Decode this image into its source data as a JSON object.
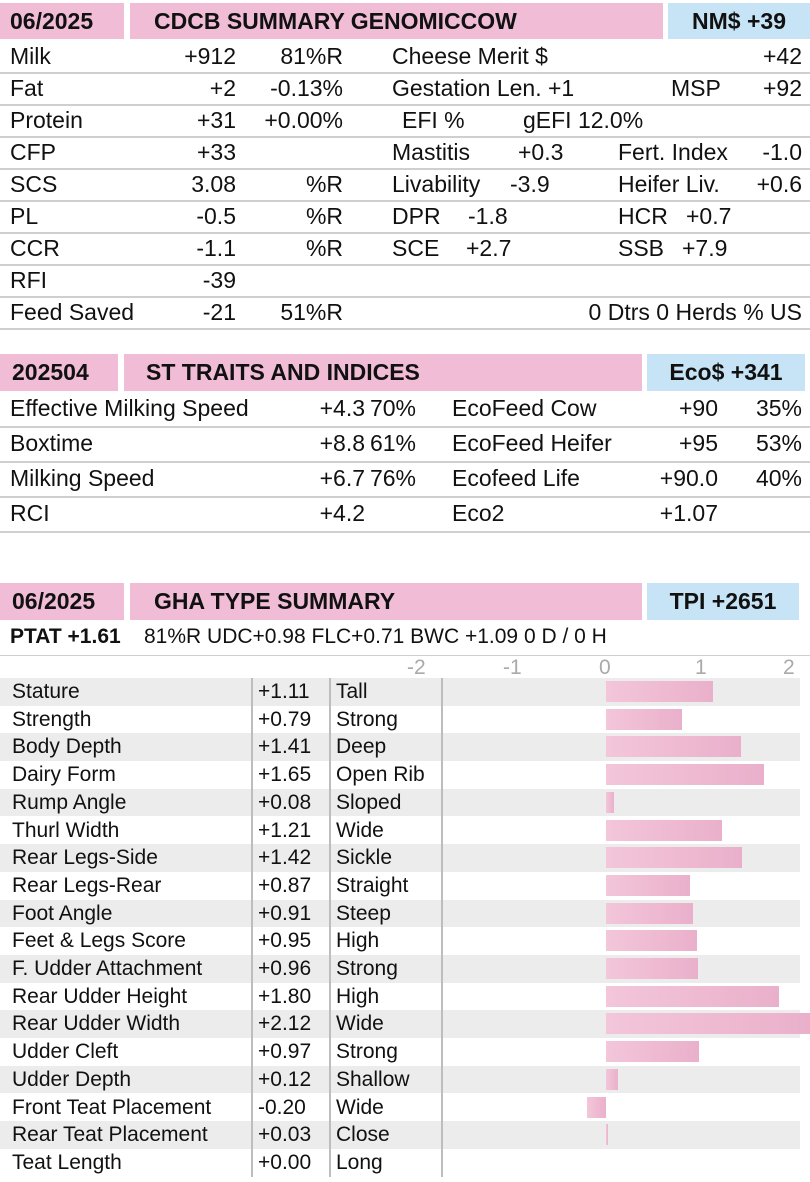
{
  "section1": {
    "date": "06/2025",
    "title": "CDCB SUMMARY GENOMICCOW",
    "score": "NM$ +39",
    "left_rows": [
      {
        "label": "Milk",
        "value": "+912",
        "extra": "81%R"
      },
      {
        "label": "Fat",
        "value": "+2",
        "extra": "-0.13%"
      },
      {
        "label": "Protein",
        "value": "+31",
        "extra": "+0.00%"
      },
      {
        "label": "CFP",
        "value": "+33",
        "extra": ""
      },
      {
        "label": "SCS",
        "value": "3.08",
        "extra": "%R"
      },
      {
        "label": "PL",
        "value": "-0.5",
        "extra": "%R"
      },
      {
        "label": "CCR",
        "value": "-1.1",
        "extra": "%R"
      },
      {
        "label": "RFI",
        "value": "-39",
        "extra": ""
      },
      {
        "label": "Feed Saved",
        "value": "-21",
        "extra": "51%R"
      }
    ],
    "cheese_merit": {
      "label": "Cheese Merit $",
      "value": "+42"
    },
    "gestation": {
      "label": "Gestation Len. +1",
      "msp_label": "MSP",
      "msp_value": "+92"
    },
    "efi": {
      "label": "EFI  %",
      "gefi": "gEFI  12.0%"
    },
    "mastitis": {
      "label": "Mastitis",
      "value": "+0.3"
    },
    "fert_index": {
      "label": "Fert. Index",
      "value": "-1.0"
    },
    "livability": {
      "label": "Livability",
      "value": "-3.9"
    },
    "heifer_liv": {
      "label": "Heifer Liv.",
      "value": "+0.6"
    },
    "dpr": {
      "label": "DPR",
      "value": "-1.8"
    },
    "hcr": {
      "label": "HCR",
      "value": "+0.7"
    },
    "sce": {
      "label": "SCE",
      "value": "+2.7"
    },
    "ssb": {
      "label": "SSB",
      "value": "+7.9"
    },
    "footer": "0 Dtrs  0 Herds  % US"
  },
  "section2": {
    "date": "202504",
    "title": "ST TRAITS AND INDICES",
    "score": "Eco$ +341",
    "left_rows": [
      {
        "label": "Effective Milking Speed",
        "value": "+4.3",
        "extra": "70%"
      },
      {
        "label": "Boxtime",
        "value": "+8.8",
        "extra": "61%"
      },
      {
        "label": "Milking Speed",
        "value": "+6.7",
        "extra": "76%"
      },
      {
        "label": "RCI",
        "value": "+4.2",
        "extra": ""
      }
    ],
    "right_rows": [
      {
        "label": "EcoFeed Cow",
        "value": "+90",
        "extra": "35%"
      },
      {
        "label": "EcoFeed Heifer",
        "value": "+95",
        "extra": "53%"
      },
      {
        "label": "Ecofeed Life",
        "value": "+90.0",
        "extra": "40%"
      },
      {
        "label": "Eco2",
        "value": "+1.07",
        "extra": ""
      }
    ]
  },
  "section3": {
    "date": "06/2025",
    "title": "GHA TYPE SUMMARY",
    "score": "TPI +2651",
    "ptat": "PTAT +1.61",
    "summary": "81%R  UDC+0.98  FLC+0.71  BWC +1.09  0 D /  0 H",
    "axis_labels": [
      "-2",
      "-1",
      "0",
      "1",
      "2"
    ]
  },
  "chart_data": {
    "type": "bar",
    "title": "GHA TYPE SUMMARY",
    "xlim": [
      -2,
      2
    ],
    "categories": [
      "Stature",
      "Strength",
      "Body Depth",
      "Dairy Form",
      "Rump Angle",
      "Thurl Width",
      "Rear Legs-Side",
      "Rear Legs-Rear",
      "Foot Angle",
      "Feet & Legs Score",
      "F. Udder Attachment",
      "Rear Udder Height",
      "Rear Udder Width",
      "Udder Cleft",
      "Udder Depth",
      "Front Teat Placement",
      "Rear Teat Placement",
      "Teat Length"
    ],
    "values": [
      1.11,
      0.79,
      1.41,
      1.65,
      0.08,
      1.21,
      1.42,
      0.87,
      0.91,
      0.95,
      0.96,
      1.8,
      2.12,
      0.97,
      0.12,
      -0.2,
      0.03,
      0.0
    ],
    "value_labels": [
      "+1.11",
      "+0.79",
      "+1.41",
      "+1.65",
      "+0.08",
      "+1.21",
      "+1.42",
      "+0.87",
      "+0.91",
      "+0.95",
      "+0.96",
      "+1.80",
      "+2.12",
      "+0.97",
      "+0.12",
      "-0.20",
      "+0.03",
      "+0.00"
    ],
    "descriptors": [
      "Tall",
      "Strong",
      "Deep",
      "Open Rib",
      "Sloped",
      "Wide",
      "Sickle",
      "Straight",
      "Steep",
      "High",
      "Strong",
      "High",
      "Wide",
      "Strong",
      "Shallow",
      "Wide",
      "Close",
      "Long"
    ]
  }
}
